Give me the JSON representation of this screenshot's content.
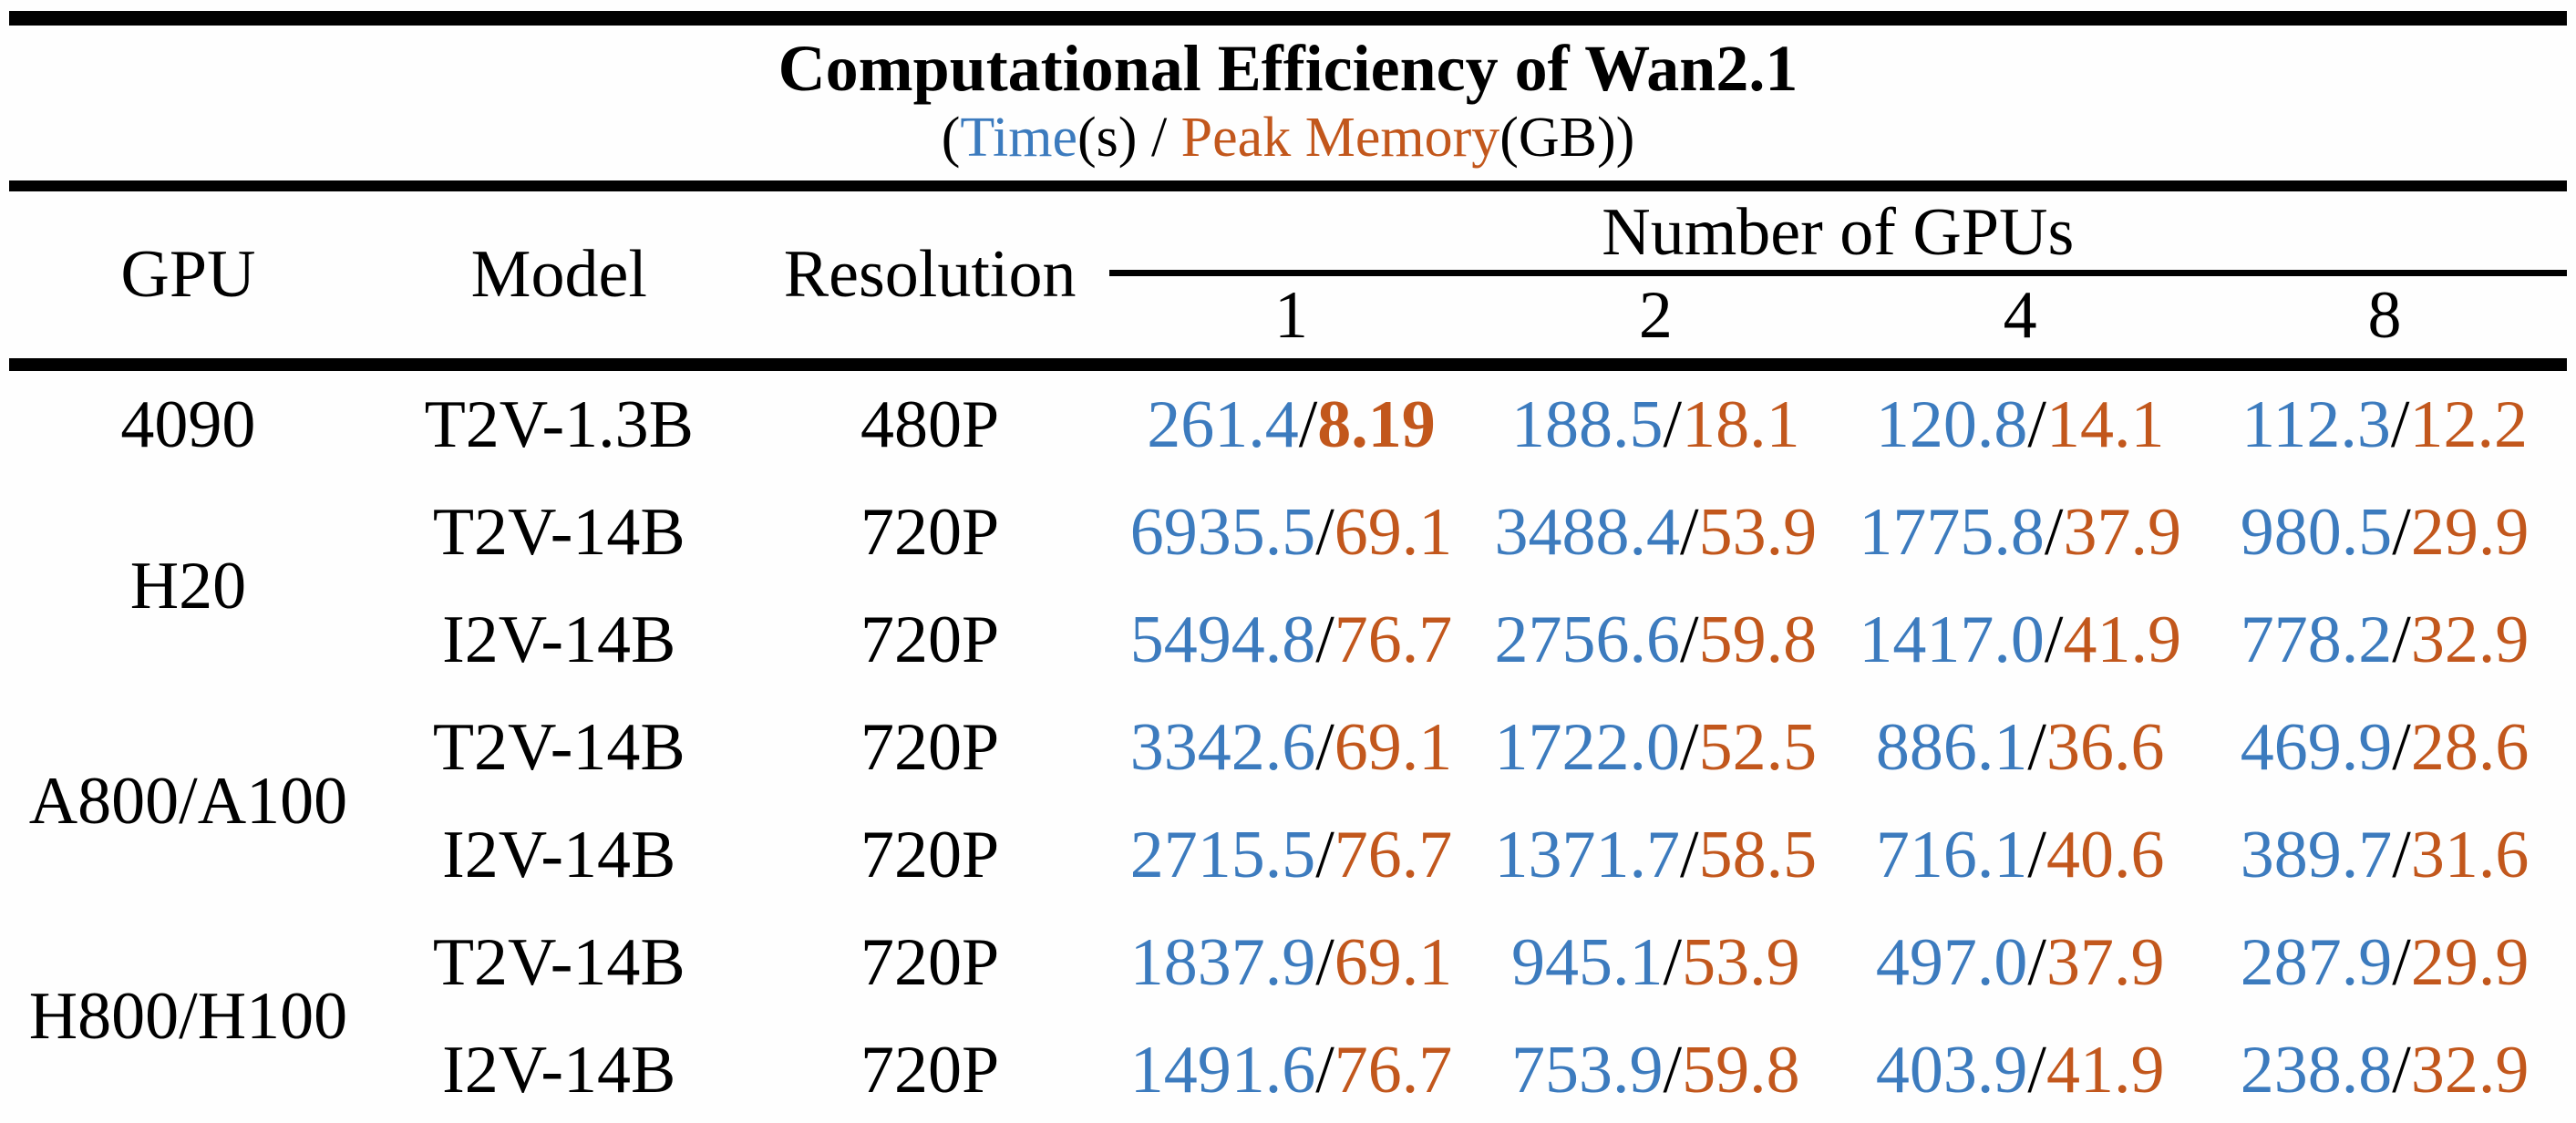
{
  "title": "Computational Efficiency of Wan2.1",
  "subtitle": {
    "open_paren": "(",
    "time_label": "Time",
    "time_unit": "(s)",
    "separator": " / ",
    "memory_label": "Peak Memory",
    "memory_unit": "(GB)",
    "close_paren": ")"
  },
  "colors": {
    "time": "#3C7BBE",
    "memory": "#C2571C",
    "rule": "#000000"
  },
  "value_separator": "/",
  "columns": {
    "gpu": "GPU",
    "model": "Model",
    "resolution": "Resolution",
    "gpus_group": "Number of GPUs",
    "gpu_counts": [
      "1",
      "2",
      "4",
      "8"
    ]
  },
  "rows": [
    {
      "gpu": "4090",
      "gpu_rowspan": 1,
      "model": "T2V-1.3B",
      "resolution": "480P",
      "cells": [
        {
          "time": "261.4",
          "memory": "8.19",
          "memory_bold": true
        },
        {
          "time": "188.5",
          "memory": "18.1"
        },
        {
          "time": "120.8",
          "memory": "14.1"
        },
        {
          "time": "112.3",
          "memory": "12.2"
        }
      ]
    },
    {
      "gpu": "H20",
      "gpu_rowspan": 2,
      "model": "T2V-14B",
      "resolution": "720P",
      "cells": [
        {
          "time": "6935.5",
          "memory": "69.1"
        },
        {
          "time": "3488.4",
          "memory": "53.9"
        },
        {
          "time": "1775.8",
          "memory": "37.9"
        },
        {
          "time": "980.5",
          "memory": "29.9"
        }
      ]
    },
    {
      "model": "I2V-14B",
      "resolution": "720P",
      "cells": [
        {
          "time": "5494.8",
          "memory": "76.7"
        },
        {
          "time": "2756.6",
          "memory": "59.8"
        },
        {
          "time": "1417.0",
          "memory": "41.9"
        },
        {
          "time": "778.2",
          "memory": "32.9"
        }
      ]
    },
    {
      "gpu": "A800/A100",
      "gpu_rowspan": 2,
      "model": "T2V-14B",
      "resolution": "720P",
      "cells": [
        {
          "time": "3342.6",
          "memory": "69.1"
        },
        {
          "time": "1722.0",
          "memory": "52.5"
        },
        {
          "time": "886.1",
          "memory": "36.6"
        },
        {
          "time": "469.9",
          "memory": "28.6"
        }
      ]
    },
    {
      "model": "I2V-14B",
      "resolution": "720P",
      "cells": [
        {
          "time": "2715.5",
          "memory": "76.7"
        },
        {
          "time": "1371.7",
          "memory": "58.5"
        },
        {
          "time": "716.1",
          "memory": "40.6"
        },
        {
          "time": "389.7",
          "memory": "31.6"
        }
      ]
    },
    {
      "gpu": "H800/H100",
      "gpu_rowspan": 2,
      "model": "T2V-14B",
      "resolution": "720P",
      "cells": [
        {
          "time": "1837.9",
          "memory": "69.1"
        },
        {
          "time": "945.1",
          "memory": "53.9"
        },
        {
          "time": "497.0",
          "memory": "37.9"
        },
        {
          "time": "287.9",
          "memory": "29.9"
        }
      ]
    },
    {
      "model": "I2V-14B",
      "resolution": "720P",
      "cells": [
        {
          "time": "1491.6",
          "memory": "76.7"
        },
        {
          "time": "753.9",
          "memory": "59.8"
        },
        {
          "time": "403.9",
          "memory": "41.9"
        },
        {
          "time": "238.8",
          "memory": "32.9"
        }
      ]
    }
  ]
}
